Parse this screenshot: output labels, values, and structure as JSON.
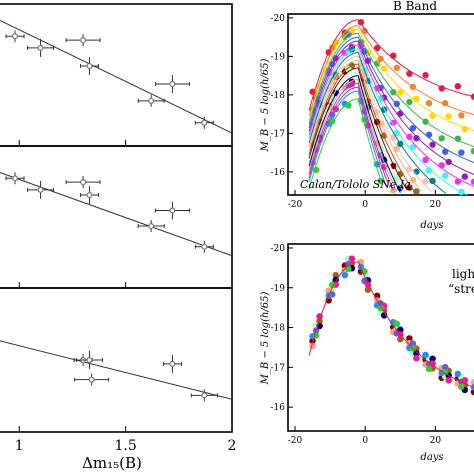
{
  "figure": {
    "left_xlabel": "Δm₁₅(B)",
    "left_xticks": [
      1,
      1.5,
      2
    ],
    "right_ylabel": "M_B − 5 log(h/65)",
    "right_xlabel": "days",
    "right_xticks": [
      -20,
      0,
      20
    ],
    "right_yticks": [
      -20,
      -19,
      -18,
      -17,
      -16
    ],
    "top_title": "B Band",
    "top_annotation": "Calan/Tololo SNe Ia",
    "bottom_annotation_1": "light-",
    "bottom_annotation_2": "“stretch"
  },
  "colors": {
    "marker": "#777777",
    "fit_line": "#333333",
    "curves": [
      "#e6194b",
      "#f58231",
      "#ffd700",
      "#3cb44b",
      "#4363d8",
      "#911eb4",
      "#f032e6",
      "#46f0f0",
      "#008080",
      "#fabebe",
      "#ffb380",
      "#9a6324",
      "#800000",
      "#aaffc3",
      "#000075",
      "#ffa07a",
      "#6a5acd",
      "#ff1493",
      "#1e90ff",
      "#32cd32"
    ]
  },
  "chart_data": [
    {
      "type": "scatter",
      "panel": "left-top",
      "x": [
        0.98,
        1.1,
        1.3,
        1.33,
        1.62,
        1.72,
        1.87
      ],
      "y": [
        -19.75,
        -19.66,
        -19.72,
        -19.52,
        -19.25,
        -19.38,
        -19.08
      ],
      "fit": {
        "x": [
          0.9,
          2.0
        ],
        "y": [
          -19.88,
          -19.0
        ]
      }
    },
    {
      "type": "scatter",
      "panel": "left-middle",
      "x": [
        0.98,
        1.1,
        1.3,
        1.33,
        1.62,
        1.72,
        1.87
      ],
      "y": [
        -19.75,
        -19.66,
        -19.72,
        -19.62,
        -19.38,
        -19.5,
        -19.22
      ],
      "fit": {
        "x": [
          0.9,
          2.0
        ],
        "y": [
          -19.8,
          -19.15
        ]
      }
    },
    {
      "type": "scatter",
      "panel": "left-bottom",
      "x": [
        1.3,
        1.33,
        1.34,
        1.72,
        1.87
      ],
      "y": [
        -19.45,
        -19.45,
        -19.3,
        -19.42,
        -19.18
      ],
      "fit": {
        "x": [
          0.9,
          2.0
        ],
        "y": [
          -19.6,
          -19.15
        ]
      }
    },
    {
      "type": "line",
      "panel": "right-top",
      "title": "B Band",
      "xlabel": "days",
      "ylabel": "M_B − 5 log(h/65)",
      "xlim": [
        -22,
        35
      ],
      "ylim": [
        -15.4,
        -20.1
      ],
      "curve_model": {
        "peak_day": -2,
        "peak_mag": [
          -19.95,
          -19.8,
          -19.7,
          -19.6,
          -19.5,
          -19.4,
          -19.3,
          -19.2,
          -19.1,
          -19.0,
          -18.9,
          -18.8,
          -18.7,
          -18.6,
          -18.5,
          -18.4,
          -18.3,
          -18.2,
          -18.1,
          -17.9
        ],
        "decline_30d": [
          1.9,
          2.2,
          2.5,
          2.8,
          3.1,
          3.3,
          3.5,
          3.7,
          3.9,
          4.1,
          4.3,
          4.5,
          4.7,
          4.9,
          5.0,
          5.1,
          5.2,
          5.3,
          5.5,
          5.6
        ]
      }
    },
    {
      "type": "line",
      "panel": "right-bottom",
      "xlabel": "days",
      "ylabel": "M_B − 5 log(h/65)",
      "xlim": [
        -22,
        35
      ],
      "ylim": [
        -15.4,
        -20.1
      ],
      "curve_model": {
        "peak_day": -2,
        "peak_mag": -19.65,
        "decline_30d": 3.0
      }
    }
  ]
}
